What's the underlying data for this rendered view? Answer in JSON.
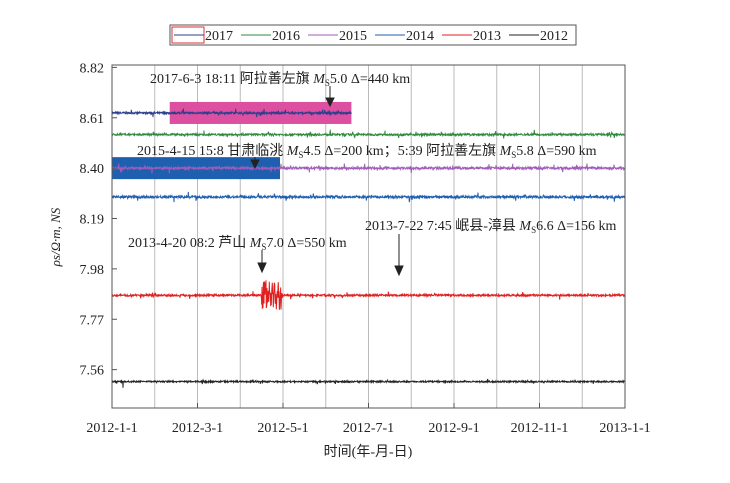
{
  "chart_data": {
    "type": "line",
    "title": "",
    "xlabel": "时间(年-月-日)",
    "ylabel": "ρs/Ω·m, NS",
    "xlim": [
      "2012-1-1",
      "2013-1-1"
    ],
    "ylim": [
      7.4,
      8.83
    ],
    "x_ticks": [
      "2012-1-1",
      "2012-3-1",
      "2012-5-1",
      "2012-7-1",
      "2012-9-1",
      "2012-11-1",
      "2013-1-1"
    ],
    "y_ticks": [
      "7.56",
      "7.77",
      "7.98",
      "8.19",
      "8.40",
      "8.61",
      "8.82"
    ],
    "grid": "vertical monthly",
    "legend_position": "top-center",
    "series": [
      {
        "name": "2017",
        "color": "#2b3f8c",
        "level": 8.63,
        "noise": 0.004,
        "end_month": 5.6
      },
      {
        "name": "2016",
        "color": "#2e8b3e",
        "level": 8.54,
        "noise": 0.004,
        "end_month": 12
      },
      {
        "name": "2015",
        "color": "#a05cb8",
        "level": 8.4,
        "noise": 0.005,
        "end_month": 12
      },
      {
        "name": "2014",
        "color": "#1f5fb0",
        "level": 8.28,
        "noise": 0.005,
        "end_month": 12
      },
      {
        "name": "2013",
        "color": "#e02020",
        "level": 7.87,
        "noise": 0.004,
        "end_month": 12
      },
      {
        "name": "2012",
        "color": "#222222",
        "level": 7.51,
        "noise": 0.003,
        "end_month": 12
      }
    ],
    "highlight_boxes": [
      {
        "series": "2017",
        "from_month": 1.35,
        "to_month": 5.6,
        "color": "#dd4fa0"
      },
      {
        "series": "2015",
        "from_month": 0,
        "to_month": 3.93,
        "color": "#1f5fb0"
      }
    ],
    "annotations": [
      {
        "pre": "2017-6-3  18:11 阿拉善左旗 ",
        "m": "M",
        "s": "S",
        "post": "5.0 Δ=440 km"
      },
      {
        "pre": "2015-4-15  15:8 甘肃临洮 ",
        "m": "M",
        "s": "S",
        "post": "4.5 Δ=200 km；5:39 阿拉善左旗 ",
        "m2": "M",
        "s2": "S",
        "post2": "5.8 Δ=590 km"
      },
      {
        "pre": "2013-7-22  7:45 岷县-漳县 ",
        "m": "M",
        "s": "S",
        "post": "6.6 Δ=156 km"
      },
      {
        "pre": "2013-4-20  08:2 芦山 ",
        "m": "M",
        "s": "S",
        "post": "7.0 Δ=550 km"
      }
    ]
  }
}
